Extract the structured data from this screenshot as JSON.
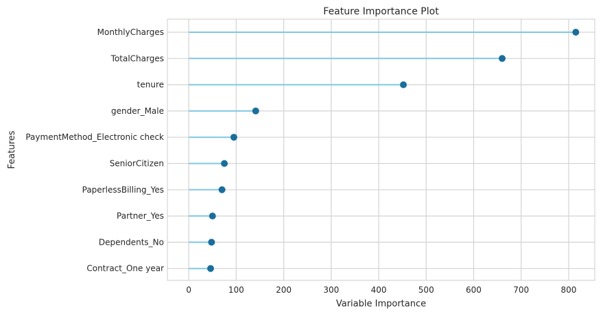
{
  "chart_data": {
    "type": "lollipop",
    "title": "Feature Importance Plot",
    "xlabel": "Variable Importance",
    "ylabel": "Features",
    "xlim": [
      -45,
      855
    ],
    "xticks": [
      0,
      100,
      200,
      300,
      400,
      500,
      600,
      700,
      800
    ],
    "grid": true,
    "legend": "none",
    "colors": {
      "stem": "#7ec8e3",
      "marker": "#1a6e9c",
      "grid": "#d3d3d3",
      "frame": "#cccccc"
    },
    "categories": [
      "MonthlyCharges",
      "TotalCharges",
      "tenure",
      "gender_Male",
      "PaymentMethod_Electronic check",
      "SeniorCitizen",
      "PaperlessBilling_Yes",
      "Partner_Yes",
      "Dependents_No",
      "Contract_One year"
    ],
    "values": [
      815,
      660,
      452,
      141,
      95,
      75,
      70,
      50,
      48,
      46
    ]
  }
}
